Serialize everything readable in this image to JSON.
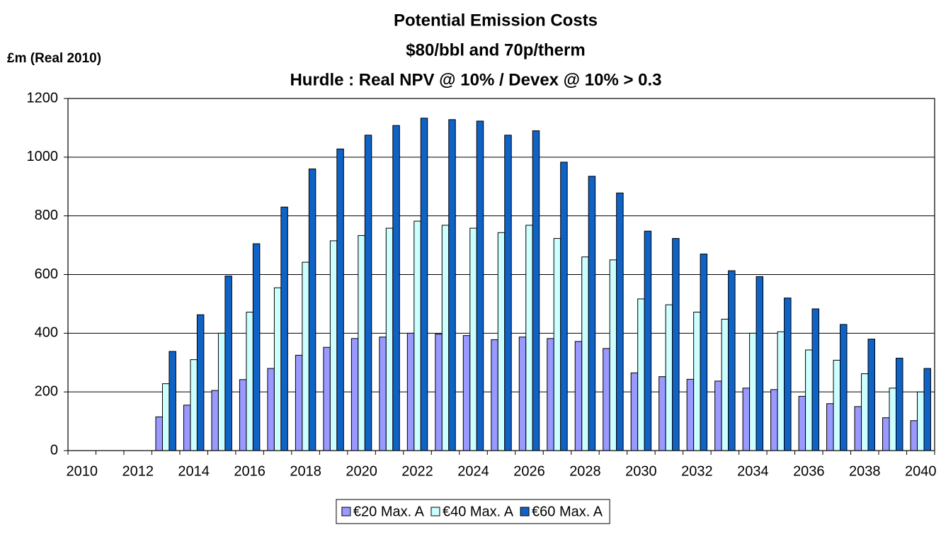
{
  "chart_data": {
    "type": "bar",
    "title": [
      "Potential Emission Costs",
      "$80/bbl and 70p/therm",
      "Hurdle : Real NPV @ 10% /  Devex @ 10% > 0.3"
    ],
    "y_label": "£m (Real 2010)",
    "categories": [
      "2010",
      null,
      "2012",
      null,
      "2014",
      null,
      "2016",
      null,
      "2018",
      null,
      "2020",
      null,
      "2022",
      null,
      "2024",
      null,
      "2026",
      null,
      "2028",
      null,
      "2030",
      null,
      "2032",
      null,
      "2034",
      null,
      "2036",
      null,
      "2038",
      null,
      "2040"
    ],
    "series": [
      {
        "name": "€20 Max. A",
        "color": "#9999ff",
        "values": [
          0,
          0,
          0,
          115,
          155,
          205,
          242,
          280,
          325,
          352,
          382,
          387,
          400,
          397,
          392,
          378,
          387,
          382,
          372,
          348,
          265,
          252,
          243,
          237,
          213,
          208,
          185,
          160,
          150,
          112,
          102
        ]
      },
      {
        "name": "€40 Max. A",
        "color": "#ccffff",
        "values": [
          0,
          0,
          0,
          228,
          310,
          400,
          472,
          555,
          642,
          715,
          733,
          758,
          782,
          768,
          758,
          743,
          768,
          723,
          660,
          650,
          517,
          497,
          472,
          448,
          400,
          405,
          343,
          308,
          262,
          213,
          200
        ]
      },
      {
        "name": "€60 Max. A",
        "color": "#0f62c6",
        "values": [
          0,
          0,
          0,
          338,
          463,
          595,
          705,
          830,
          960,
          1028,
          1075,
          1108,
          1133,
          1128,
          1123,
          1075,
          1090,
          983,
          935,
          878,
          748,
          723,
          670,
          613,
          593,
          520,
          483,
          430,
          380,
          315,
          280
        ]
      }
    ],
    "ylim": [
      0,
      1200
    ],
    "yticks": [
      0,
      200,
      400,
      600,
      800,
      1000,
      1200
    ],
    "grid": true,
    "legend": "bottom"
  }
}
